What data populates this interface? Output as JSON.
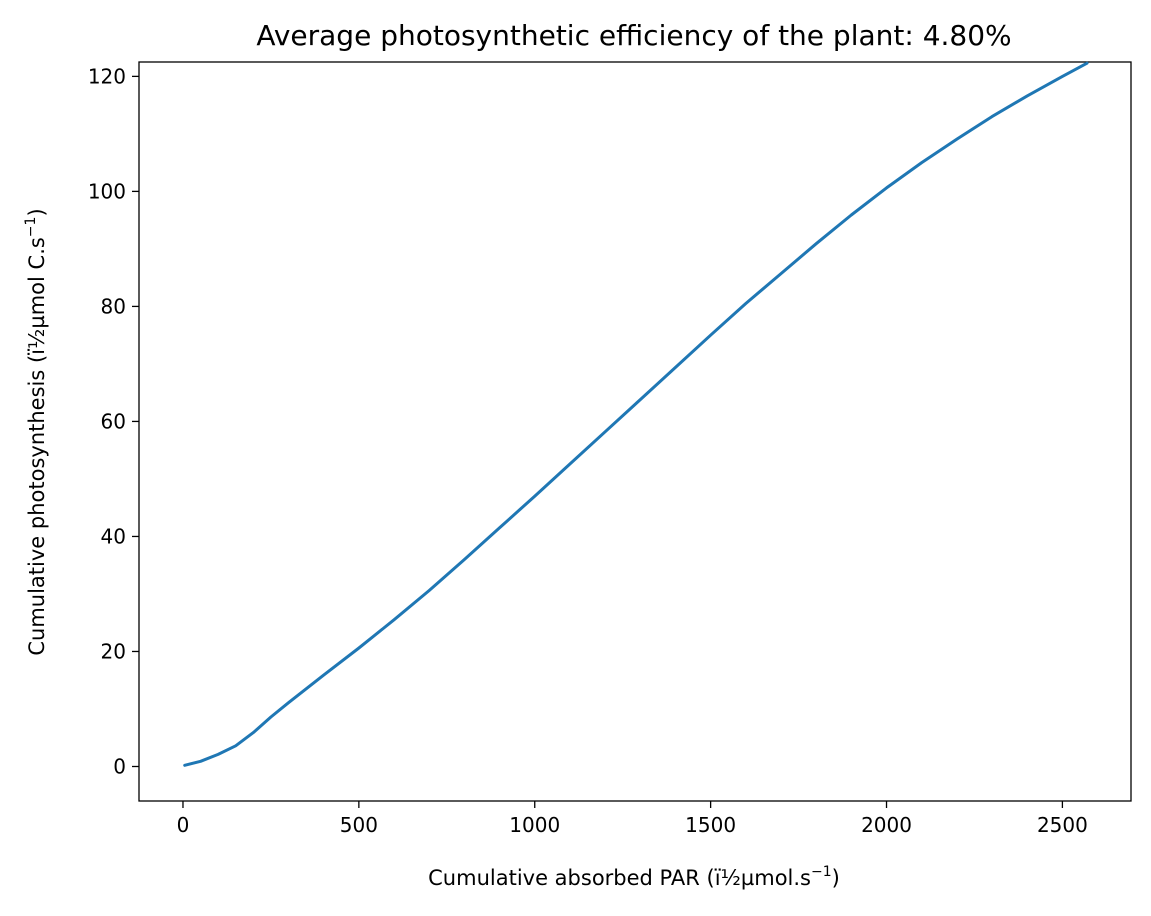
{
  "chart_data": {
    "type": "line",
    "title": "Average photosynthetic efficiency of the plant: 4.80%",
    "xlabel": "Cumulative absorbed PAR (ï½µmol.s",
    "ylabel": "Cumulative photosynthesis (ï½µmol C.s",
    "unit_superscript": "−1",
    "unit_close": ")",
    "xlim": [
      -125,
      2695
    ],
    "ylim": [
      -6,
      122.5
    ],
    "xticks": [
      0,
      500,
      1000,
      1500,
      2000,
      2500
    ],
    "yticks": [
      0,
      20,
      40,
      60,
      80,
      100,
      120
    ],
    "grid": false,
    "legend": "none",
    "series": [
      {
        "color": "#1f77b4",
        "x": [
          5,
          50,
          100,
          150,
          200,
          250,
          300,
          400,
          500,
          600,
          700,
          800,
          900,
          1000,
          1100,
          1200,
          1300,
          1400,
          1500,
          1600,
          1700,
          1800,
          1900,
          2000,
          2100,
          2200,
          2300,
          2400,
          2500,
          2570
        ],
        "y": [
          0.2,
          0.9,
          2.1,
          3.6,
          5.9,
          8.6,
          11.1,
          15.9,
          20.6,
          25.5,
          30.6,
          36.0,
          41.5,
          47.0,
          52.6,
          58.2,
          63.8,
          69.4,
          75.0,
          80.5,
          85.7,
          90.9,
          95.9,
          100.6,
          105.0,
          109.1,
          113.0,
          116.6,
          120.0,
          122.3
        ]
      }
    ]
  }
}
